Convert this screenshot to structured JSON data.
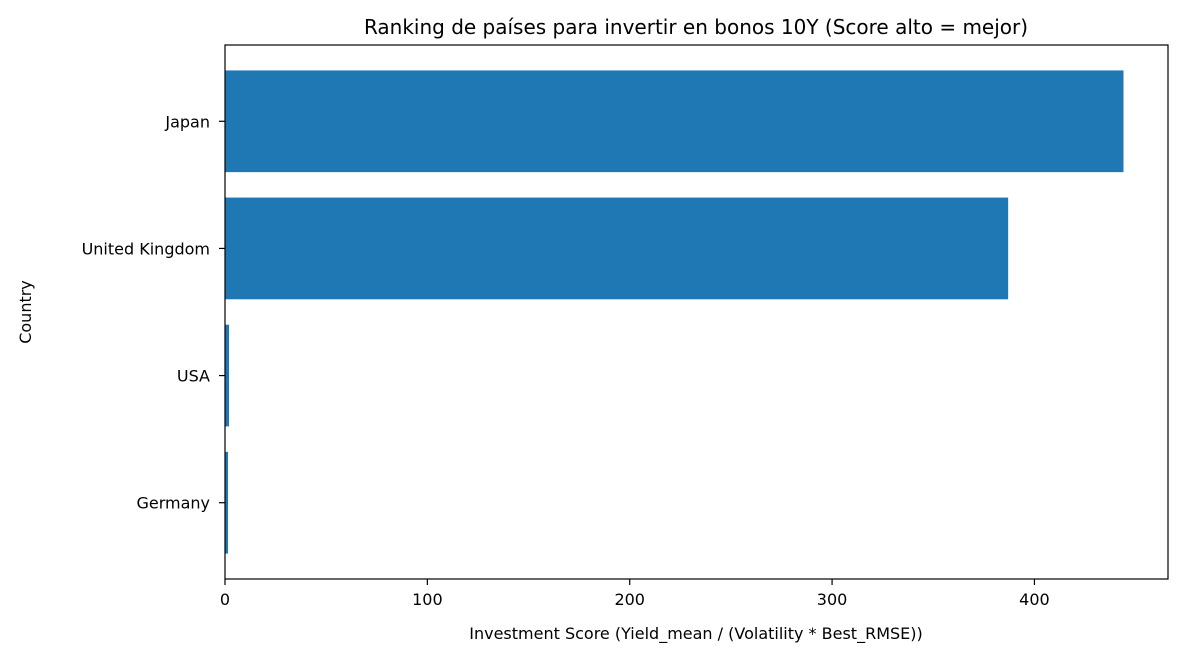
{
  "chart_data": {
    "type": "bar",
    "orientation": "horizontal",
    "title": "Ranking de países para invertir en bonos 10Y (Score alto = mejor)",
    "xlabel": "Investment Score  (Yield_mean / (Volatility * Best_RMSE))",
    "ylabel": "Country",
    "categories": [
      "Japan",
      "United Kingdom",
      "USA",
      "Germany"
    ],
    "values": [
      444,
      387,
      2,
      1.5
    ],
    "xlim": [
      0,
      466
    ],
    "xticks": [
      0,
      100,
      200,
      300,
      400
    ],
    "bar_color": "#1f77b4",
    "grid": false,
    "legend": "none"
  }
}
